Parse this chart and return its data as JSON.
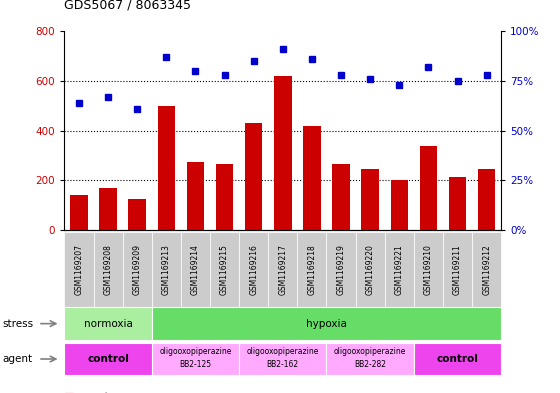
{
  "title": "GDS5067 / 8063345",
  "samples": [
    "GSM1169207",
    "GSM1169208",
    "GSM1169209",
    "GSM1169213",
    "GSM1169214",
    "GSM1169215",
    "GSM1169216",
    "GSM1169217",
    "GSM1169218",
    "GSM1169219",
    "GSM1169220",
    "GSM1169221",
    "GSM1169210",
    "GSM1169211",
    "GSM1169212"
  ],
  "counts": [
    140,
    170,
    125,
    500,
    275,
    265,
    430,
    620,
    420,
    265,
    245,
    200,
    340,
    215,
    245
  ],
  "percentiles": [
    64,
    67,
    61,
    87,
    80,
    78,
    85,
    91,
    86,
    78,
    76,
    73,
    82,
    75,
    78
  ],
  "bar_color": "#cc0000",
  "dot_color": "#0000cc",
  "ylim_left": [
    0,
    800
  ],
  "ylim_right": [
    0,
    100
  ],
  "yticks_left": [
    0,
    200,
    400,
    600,
    800
  ],
  "yticks_right": [
    0,
    25,
    50,
    75,
    100
  ],
  "ytick_labels_right": [
    "0%",
    "25%",
    "50%",
    "75%",
    "100%"
  ],
  "stress_row": [
    {
      "label": "normoxia",
      "start": 0,
      "end": 3,
      "color": "#aaeea0"
    },
    {
      "label": "hypoxia",
      "start": 3,
      "end": 15,
      "color": "#66dd66"
    }
  ],
  "agent_row": [
    {
      "label": "control",
      "start": 0,
      "end": 3,
      "color": "#ee44ee",
      "text_lines": [
        "control"
      ],
      "bold": true
    },
    {
      "label": "oligooxopiperazine BB2-125",
      "start": 3,
      "end": 6,
      "color": "#ffaaff",
      "text_lines": [
        "oligooxopiperazine",
        "BB2-125"
      ],
      "bold": false
    },
    {
      "label": "oligooxopiperazine BB2-162",
      "start": 6,
      "end": 9,
      "color": "#ffaaff",
      "text_lines": [
        "oligooxopiperazine",
        "BB2-162"
      ],
      "bold": false
    },
    {
      "label": "oligooxopiperazine BB2-282",
      "start": 9,
      "end": 12,
      "color": "#ffaaff",
      "text_lines": [
        "oligooxopiperazine",
        "BB2-282"
      ],
      "bold": false
    },
    {
      "label": "control",
      "start": 12,
      "end": 15,
      "color": "#ee44ee",
      "text_lines": [
        "control"
      ],
      "bold": true
    }
  ],
  "tick_bg_color": "#cccccc",
  "legend_count_color": "#cc0000",
  "legend_dot_color": "#0000cc"
}
